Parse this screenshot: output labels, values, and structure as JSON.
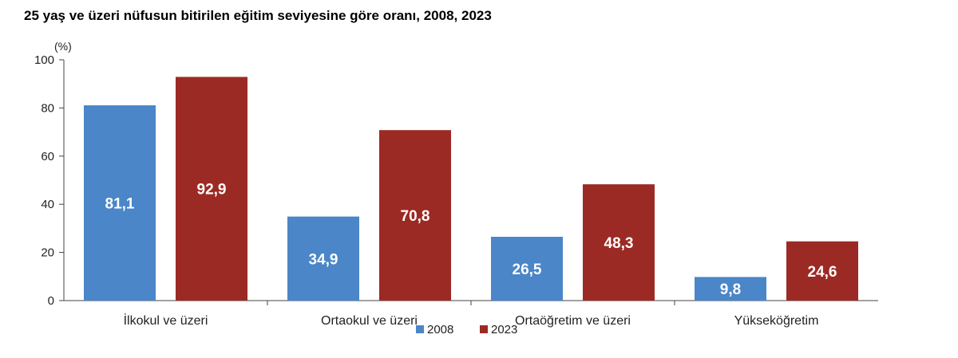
{
  "chart_data": {
    "type": "bar",
    "title": "25 yaş ve üzeri nüfusun bitirilen eğitim seviyesine göre oranı, 2008, 2023",
    "ylabel": "(%)",
    "xlabel": "",
    "categories": [
      "İlkokul ve üzeri",
      "Ortaokul ve üzeri",
      "Ortaöğretim ve üzeri",
      "Yükseköğretim"
    ],
    "series": [
      {
        "name": "2008",
        "values": [
          81.1,
          34.9,
          26.5,
          9.8
        ],
        "labels": [
          "81,1",
          "34,9",
          "26,5",
          "9,8"
        ],
        "color": "#4a86c8"
      },
      {
        "name": "2023",
        "values": [
          92.9,
          70.8,
          48.3,
          24.6
        ],
        "labels": [
          "92,9",
          "70,8",
          "48,3",
          "24,6"
        ],
        "color": "#9c2a24"
      }
    ],
    "ylim": [
      0,
      100
    ],
    "yticks": [
      "0",
      "20",
      "40",
      "60",
      "80",
      "100"
    ],
    "grid": false,
    "legend": "bottom-center"
  }
}
